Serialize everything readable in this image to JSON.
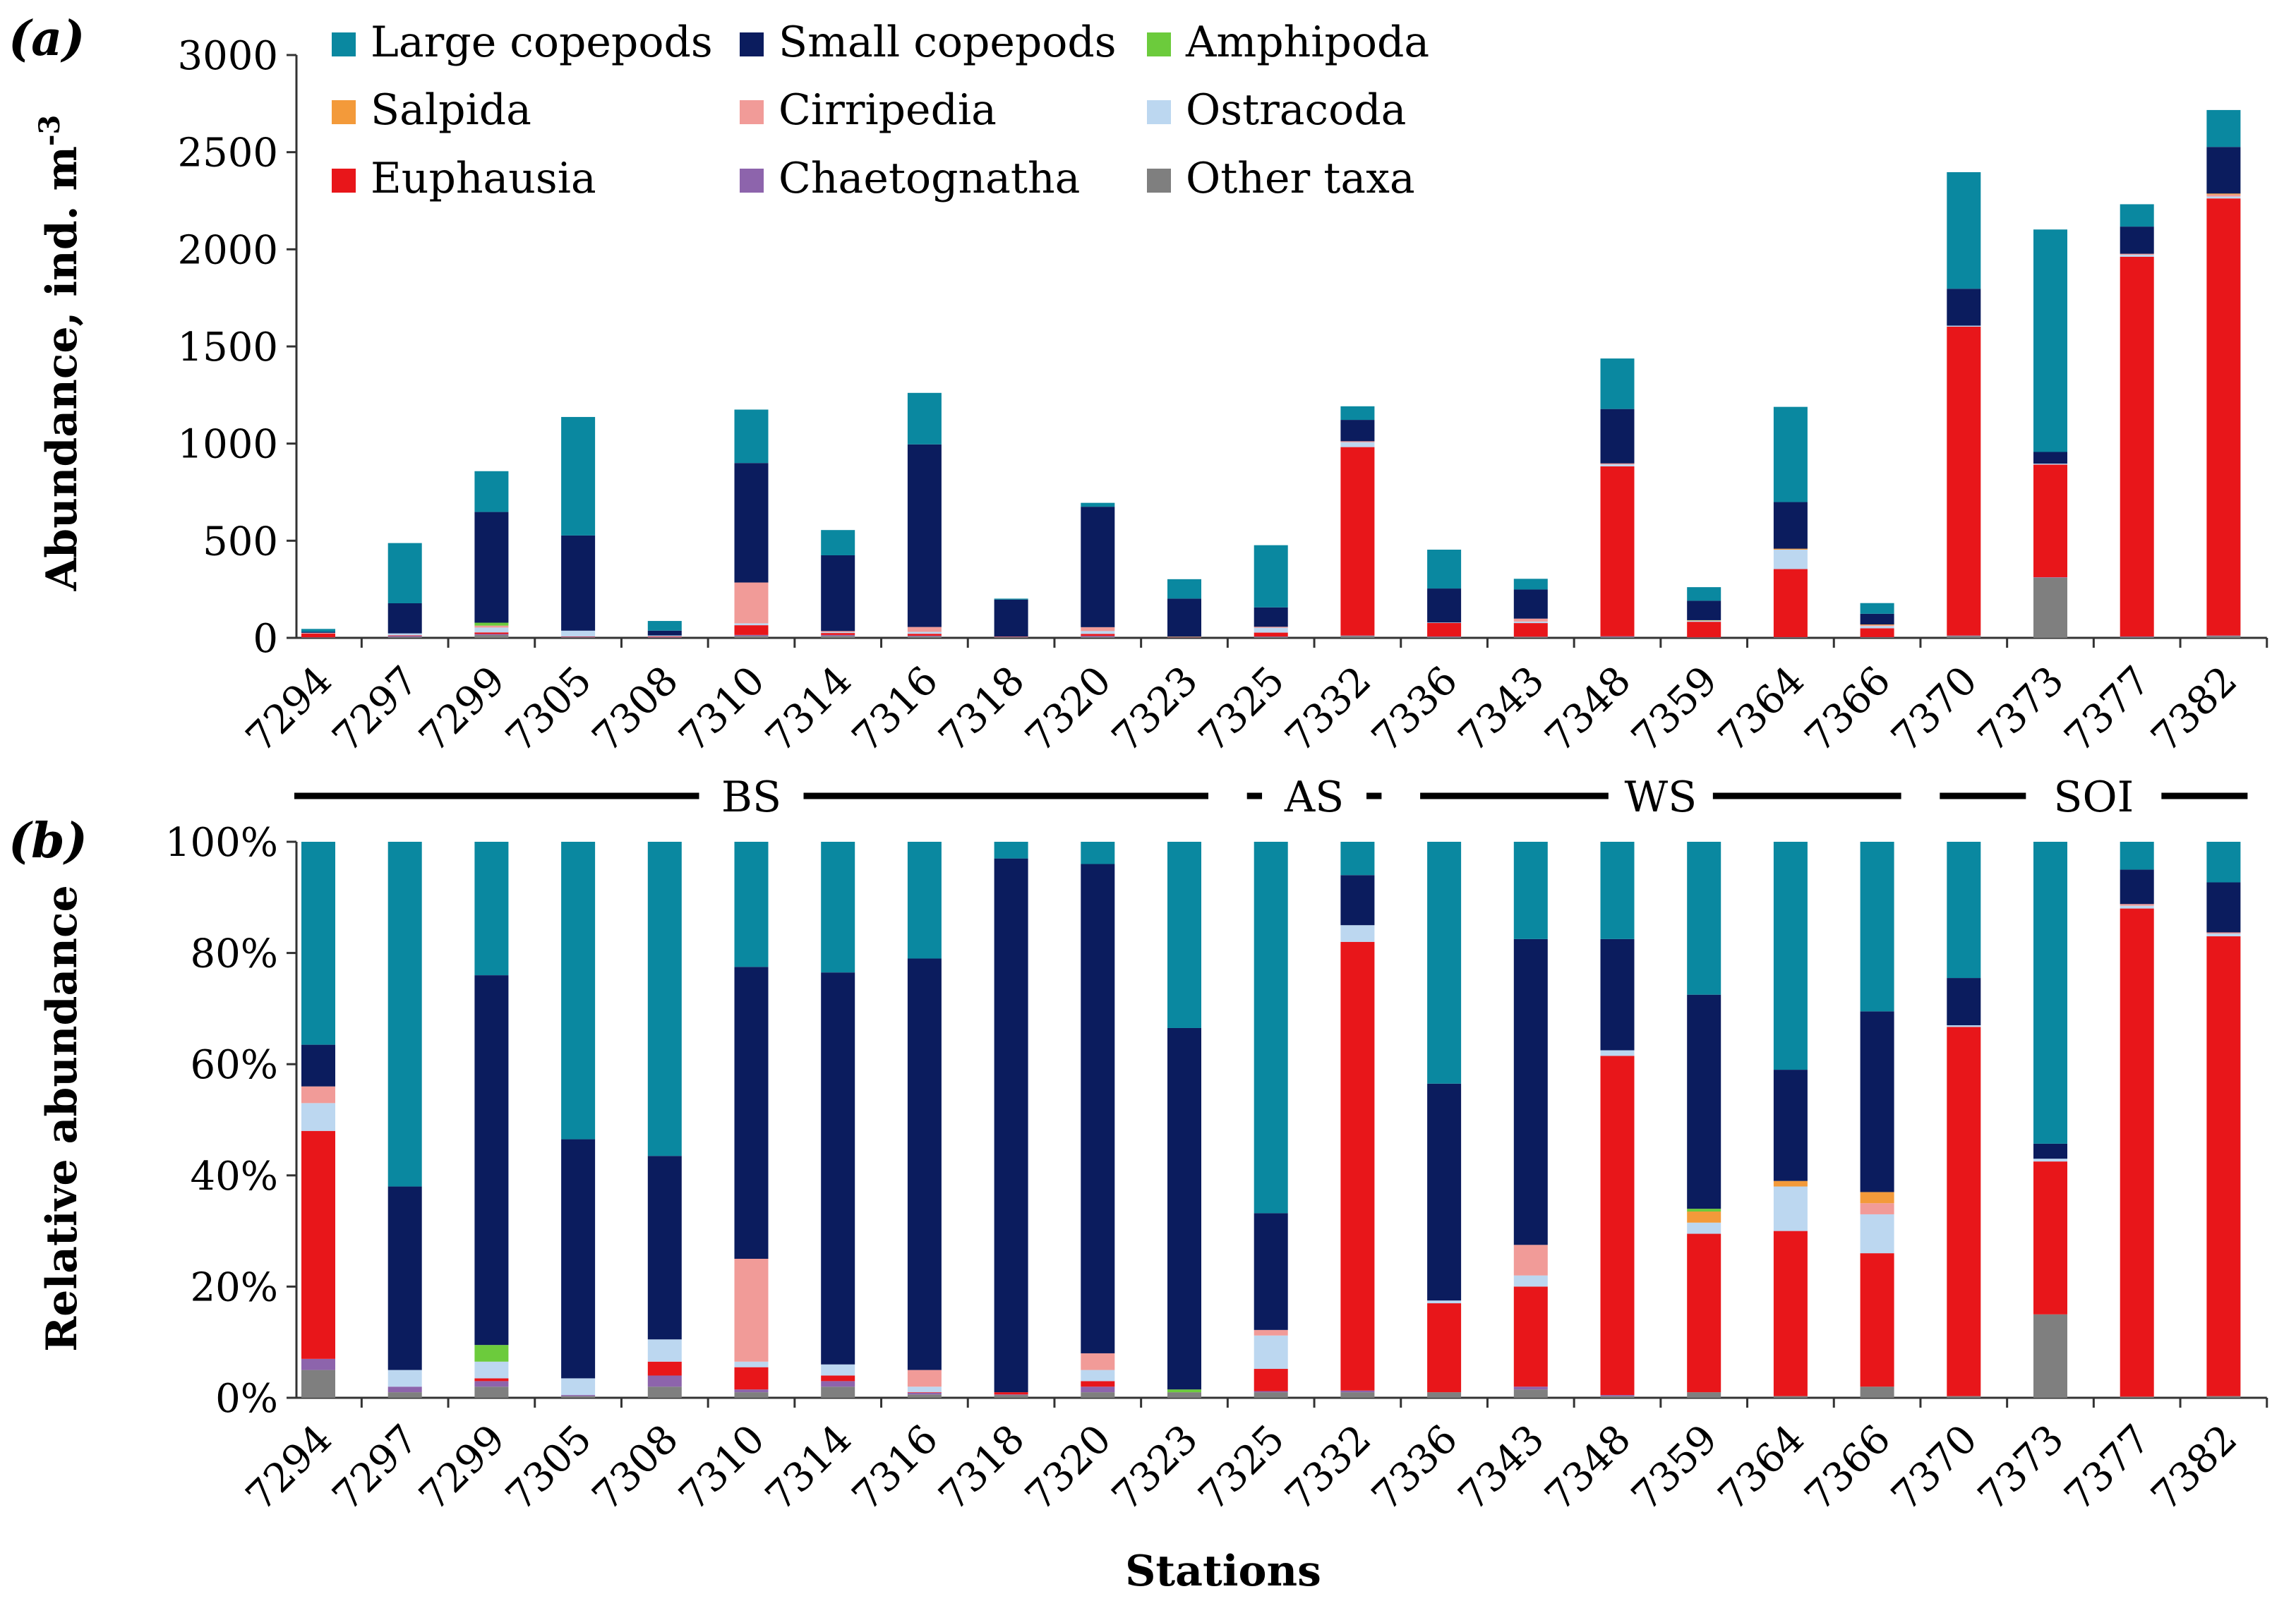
{
  "panels": {
    "a": "(a)",
    "b": "(b)"
  },
  "axis": {
    "a_ylabel": "Abundance, ind. m",
    "a_ylabel_sup": "-3",
    "b_ylabel": "Relative abundance",
    "xlabel": "Stations"
  },
  "legend": [
    {
      "name": "Large copepods",
      "color": "#0a88a0"
    },
    {
      "name": "Small copepods",
      "color": "#0b1c5e"
    },
    {
      "name": "Amphipoda",
      "color": "#6ccb3c"
    },
    {
      "name": "Salpida",
      "color": "#f39a3a"
    },
    {
      "name": "Cirripedia",
      "color": "#f19b98"
    },
    {
      "name": "Ostracoda",
      "color": "#bcd7f0"
    },
    {
      "name": "Euphausia",
      "color": "#e8161a"
    },
    {
      "name": "Chaetognatha",
      "color": "#8d64ac"
    },
    {
      "name": "Other taxa",
      "color": "#7f7f7f"
    }
  ],
  "regions": [
    {
      "label": "BS",
      "from": 0,
      "to": 10
    },
    {
      "label": "AS",
      "from": 11,
      "to": 12
    },
    {
      "label": "WS",
      "from": 13,
      "to": 18
    },
    {
      "label": "SOI",
      "from": 19,
      "to": 22
    }
  ],
  "chart_data": [
    {
      "type": "bar",
      "stacked": true,
      "panel": "(a)",
      "ylabel": "Abundance, ind. m-3",
      "ylim": [
        0,
        3000
      ],
      "yticks": [
        "0",
        "500",
        "1000",
        "1500",
        "2000",
        "2500",
        "3000"
      ],
      "yticks_values": [
        0,
        500,
        1000,
        1500,
        2000,
        2500,
        3000
      ],
      "categories": [
        "7294",
        "7297",
        "7299",
        "7305",
        "7308",
        "7310",
        "7314",
        "7316",
        "7318",
        "7320",
        "7323",
        "7325",
        "7332",
        "7336",
        "7343",
        "7348",
        "7359",
        "7364",
        "7366",
        "7370",
        "7373",
        "7377",
        "7382"
      ],
      "series": [
        {
          "name": "Other taxa",
          "values": [
            2,
            5,
            15,
            3,
            2,
            10,
            10,
            8,
            3,
            5,
            2,
            5,
            10,
            5,
            5,
            5,
            2,
            3,
            3,
            10,
            310,
            5,
            10
          ]
        },
        {
          "name": "Chaetognatha",
          "values": [
            1,
            5,
            5,
            2,
            2,
            5,
            5,
            3,
            1,
            5,
            1,
            2,
            2,
            2,
            1,
            3,
            1,
            1,
            1,
            2,
            2,
            2,
            2
          ]
        },
        {
          "name": "Euphausia",
          "values": [
            20,
            3,
            8,
            2,
            3,
            50,
            10,
            10,
            2,
            10,
            2,
            20,
            970,
            70,
            70,
            875,
            80,
            350,
            45,
            1590,
            580,
            1955,
            2250
          ]
        },
        {
          "name": "Ostracoda",
          "values": [
            2,
            10,
            25,
            30,
            5,
            10,
            5,
            10,
            1,
            15,
            1,
            25,
            25,
            2,
            8,
            10,
            5,
            100,
            12,
            5,
            5,
            10,
            10
          ]
        },
        {
          "name": "Cirripedia",
          "values": [
            1,
            0,
            10,
            0,
            0,
            210,
            5,
            25,
            0,
            20,
            0,
            5,
            5,
            0,
            15,
            5,
            0,
            0,
            5,
            0,
            0,
            5,
            10
          ]
        },
        {
          "name": "Salpida",
          "values": [
            0,
            0,
            0,
            0,
            0,
            0,
            0,
            0,
            0,
            0,
            0,
            0,
            0,
            0,
            0,
            0,
            2,
            5,
            3,
            0,
            0,
            0,
            5
          ]
        },
        {
          "name": "Amphipoda",
          "values": [
            0,
            0,
            15,
            0,
            0,
            0,
            0,
            0,
            0,
            0,
            1,
            0,
            0,
            0,
            0,
            0,
            1,
            0,
            0,
            0,
            0,
            0,
            0
          ]
        },
        {
          "name": "Small copepods",
          "values": [
            5,
            155,
            570,
            490,
            25,
            615,
            390,
            940,
            190,
            620,
            195,
            100,
            110,
            175,
            150,
            280,
            100,
            240,
            55,
            190,
            60,
            140,
            240
          ]
        },
        {
          "name": "Large copepods",
          "values": [
            15,
            310,
            210,
            610,
            50,
            275,
            130,
            265,
            5,
            20,
            100,
            320,
            70,
            200,
            55,
            260,
            70,
            490,
            55,
            600,
            1145,
            115,
            190
          ]
        }
      ]
    },
    {
      "type": "bar",
      "stacked": true,
      "panel": "(b)",
      "ylabel": "Relative abundance",
      "xlabel": "Stations",
      "ylim": [
        0,
        100
      ],
      "yticks": [
        "0%",
        "20%",
        "40%",
        "60%",
        "80%",
        "100%"
      ],
      "yticks_values": [
        0,
        20,
        40,
        60,
        80,
        100
      ],
      "categories": [
        "7294",
        "7297",
        "7299",
        "7305",
        "7308",
        "7310",
        "7314",
        "7316",
        "7318",
        "7320",
        "7323",
        "7325",
        "7332",
        "7336",
        "7343",
        "7348",
        "7359",
        "7364",
        "7366",
        "7370",
        "7373",
        "7377",
        "7382"
      ],
      "series": [
        {
          "name": "Other taxa",
          "values": [
            5,
            1,
            2,
            0.3,
            2,
            1,
            2,
            0.6,
            0.5,
            1,
            1,
            1,
            1,
            1,
            1.5,
            0.3,
            1,
            0.3,
            2,
            0.3,
            15,
            0.2,
            0.3
          ]
        },
        {
          "name": "Chaetognatha",
          "values": [
            2,
            1,
            1,
            0.2,
            2,
            0.5,
            1,
            0.3,
            0.1,
            1,
            0,
            0.2,
            0.3,
            0,
            0.5,
            0.2,
            0,
            0,
            0,
            0,
            0,
            0,
            0
          ]
        },
        {
          "name": "Euphausia",
          "values": [
            41,
            0,
            0.5,
            0,
            2.5,
            4,
            1,
            0.1,
            0.4,
            1,
            0,
            4,
            80.7,
            16,
            18,
            61,
            28.5,
            29.7,
            24,
            66.4,
            27.5,
            87.8,
            82.7
          ]
        },
        {
          "name": "Ostracoda",
          "values": [
            5,
            3,
            3,
            3,
            4,
            1,
            2,
            1,
            0,
            2,
            0,
            6,
            3,
            0.5,
            2,
            1,
            2,
            8,
            7,
            0.3,
            0.5,
            0.5,
            0.5
          ]
        },
        {
          "name": "Cirripedia",
          "values": [
            3,
            0,
            0,
            0,
            0,
            18.5,
            0,
            3,
            0,
            3,
            0,
            1,
            0,
            0,
            5.5,
            0,
            0,
            0,
            2,
            0,
            0,
            0.3,
            0.2
          ]
        },
        {
          "name": "Salpida",
          "values": [
            0,
            0,
            0,
            0,
            0,
            0,
            0,
            0,
            0,
            0,
            0,
            0,
            0,
            0,
            0,
            0,
            2,
            1,
            2,
            0,
            0,
            0,
            0
          ]
        },
        {
          "name": "Amphipoda",
          "values": [
            0,
            0,
            3,
            0,
            0,
            0,
            0,
            0,
            0,
            0,
            0.5,
            0,
            0,
            0,
            0,
            0,
            0.5,
            0,
            0,
            0,
            0,
            0,
            0
          ]
        },
        {
          "name": "Small copepods",
          "values": [
            7.5,
            33,
            66.5,
            43,
            33,
            52.5,
            70.5,
            74,
            96,
            88,
            65,
            21,
            9,
            39,
            55,
            20,
            38.5,
            20,
            32.5,
            8.5,
            2.7,
            6.2,
            9
          ]
        },
        {
          "name": "Large copepods",
          "values": [
            36.5,
            62,
            24,
            53.5,
            56.5,
            22.5,
            23.5,
            21,
            3,
            4,
            33.5,
            66.8,
            6,
            43.5,
            17.5,
            17.5,
            27.5,
            41,
            30.5,
            24.5,
            54.3,
            5,
            7.3
          ]
        }
      ]
    }
  ]
}
